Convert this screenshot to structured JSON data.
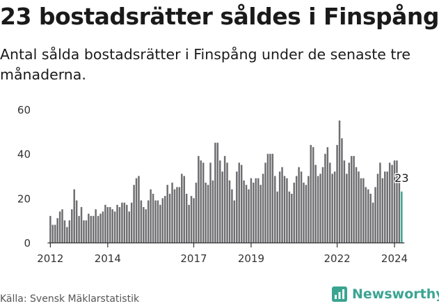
{
  "header": {
    "title": "23 bostadsrätter såldes i Finspång",
    "subtitle": "Antal sålda bostadsrätter i Finspång under de senaste tre månaderna."
  },
  "footer": {
    "source": "Källa: Svensk Mäklarstatistik",
    "brand": "Newsworthy"
  },
  "colors": {
    "bar": "#6d6d70",
    "highlight": "#3aa491",
    "axis": "#333333",
    "text": "#1a1a1a"
  },
  "chart_data": {
    "type": "bar",
    "title": "23 bostadsrätter såldes i Finspång",
    "xlabel": "",
    "ylabel": "",
    "ylim": [
      0,
      60
    ],
    "yticks": [
      0,
      20,
      40,
      60
    ],
    "xticks": [
      2012,
      2014,
      2017,
      2019,
      2022,
      2024
    ],
    "x_start": 2012.0,
    "step": 0.083333,
    "highlight_label": "23",
    "values": [
      12,
      8,
      8,
      11,
      14,
      15,
      10,
      7,
      10,
      15,
      24,
      19,
      12,
      16,
      10,
      10,
      13,
      12,
      12,
      15,
      12,
      13,
      14,
      17,
      16,
      16,
      15,
      14,
      17,
      16,
      18,
      18,
      17,
      14,
      18,
      26,
      29,
      30,
      19,
      16,
      15,
      19,
      24,
      22,
      19,
      19,
      17,
      20,
      21,
      26,
      22,
      27,
      24,
      25,
      25,
      31,
      30,
      22,
      17,
      21,
      20,
      27,
      39,
      37,
      36,
      27,
      26,
      36,
      28,
      45,
      45,
      37,
      32,
      39,
      36,
      28,
      24,
      19,
      32,
      36,
      35,
      28,
      26,
      24,
      29,
      27,
      29,
      29,
      26,
      31,
      36,
      40,
      40,
      40,
      30,
      23,
      32,
      34,
      30,
      29,
      23,
      22,
      27,
      30,
      34,
      32,
      27,
      26,
      30,
      44,
      43,
      35,
      30,
      31,
      34,
      40,
      43,
      36,
      31,
      32,
      44,
      55,
      47,
      37,
      31,
      36,
      39,
      39,
      34,
      32,
      29,
      29,
      25,
      24,
      22,
      18,
      25,
      31,
      36,
      29,
      32,
      32,
      36,
      35,
      37,
      37,
      27,
      23
    ]
  }
}
